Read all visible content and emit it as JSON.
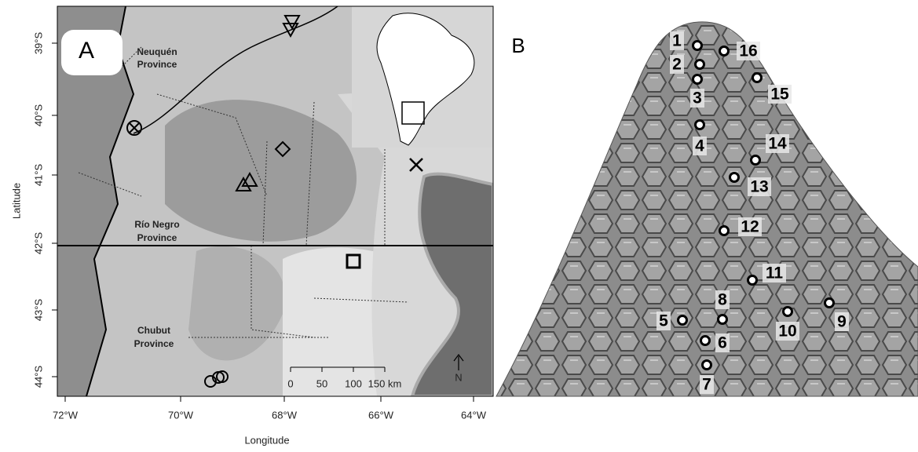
{
  "panel_a": {
    "label": "A",
    "x_axis": {
      "title": "Longitude",
      "ticks": [
        "72°W",
        "70°W",
        "68°W",
        "66°W",
        "64°W"
      ]
    },
    "y_axis": {
      "title": "Latitude",
      "ticks": [
        "39°S",
        "40°S",
        "41°S",
        "42°S",
        "43°S",
        "44°S"
      ]
    },
    "regions": [
      [
        "Neuquén",
        "Province"
      ],
      [
        "Río Negro",
        "Province"
      ],
      [
        "Chubut",
        "Province"
      ]
    ],
    "scale_bar": [
      "0",
      "50",
      "100",
      "150 km"
    ],
    "north": "N"
  },
  "panel_b": {
    "label": "B",
    "landmarks": [
      "1",
      "2",
      "3",
      "4",
      "5",
      "6",
      "7",
      "8",
      "9",
      "10",
      "11",
      "12",
      "13",
      "14",
      "15",
      "16"
    ]
  }
}
